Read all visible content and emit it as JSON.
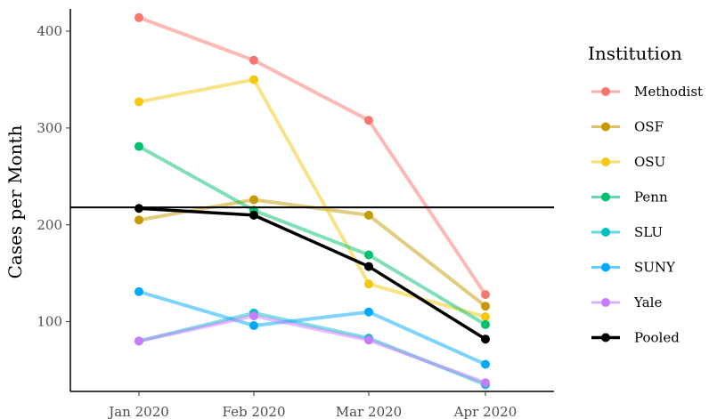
{
  "chart_data": {
    "type": "line",
    "categories": [
      "Jan 2020",
      "Feb 2020",
      "Mar 2020",
      "Apr 2020"
    ],
    "ylabel": "Cases per Month",
    "xlabel": "",
    "ylim": [
      28,
      423
    ],
    "yticks": [
      100,
      200,
      300,
      400
    ],
    "reference_line": 218,
    "legend": {
      "title": "Institution",
      "position": "right"
    },
    "grid": false,
    "series": [
      {
        "name": "Methodist",
        "color": "#F8766D",
        "values": [
          414,
          370,
          308,
          128
        ]
      },
      {
        "name": "OSF",
        "color": "#C49A00",
        "values": [
          205,
          226,
          210,
          116
        ]
      },
      {
        "name": "OSU",
        "color": "#F5C710",
        "values": [
          327,
          350,
          139,
          105
        ]
      },
      {
        "name": "Penn",
        "color": "#00C16E",
        "values": [
          281,
          215,
          169,
          97
        ]
      },
      {
        "name": "SLU",
        "color": "#00BFC4",
        "values": [
          80,
          109,
          83,
          35
        ]
      },
      {
        "name": "SUNY",
        "color": "#00A9FF",
        "values": [
          131,
          96,
          110,
          56
        ]
      },
      {
        "name": "Yale",
        "color": "#C77CFF",
        "values": [
          80,
          106,
          81,
          37
        ]
      },
      {
        "name": "Pooled",
        "color": "#000000",
        "values": [
          217,
          210,
          157,
          82
        ]
      }
    ]
  }
}
